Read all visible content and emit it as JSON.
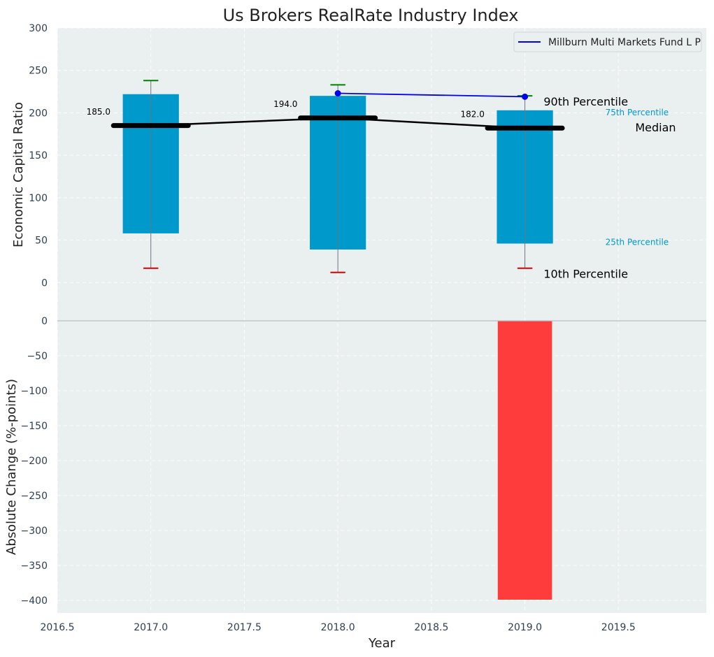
{
  "chart_data": {
    "type": "bar",
    "title": "Us Brokers RealRate Industry Index",
    "xlabel": "Year",
    "x_ticks": [
      2016.5,
      2017.0,
      2017.5,
      2018.0,
      2018.5,
      2019.0,
      2019.5
    ],
    "xlim": [
      2016.5,
      2019.97
    ],
    "top_panel": {
      "ylabel": "Economic Capital Ratio",
      "ylim": [
        -45,
        300
      ],
      "y_ticks": [
        0,
        50,
        100,
        150,
        200,
        250,
        300
      ],
      "years": [
        2017,
        2018,
        2019
      ],
      "p10": [
        17,
        12,
        17
      ],
      "p25": [
        58,
        39,
        46
      ],
      "median": [
        185.0,
        194.0,
        182.0
      ],
      "p75": [
        222,
        220,
        203
      ],
      "p90": [
        238,
        233,
        220
      ],
      "median_labels": [
        "185.0",
        "194.0",
        "182.0"
      ],
      "fund_series": {
        "name": "Millburn Multi Markets Fund L P",
        "x": [
          2018,
          2019
        ],
        "values": [
          223,
          219
        ]
      },
      "annotations": {
        "p90": "90th Percentile",
        "p75": "75th Percentile",
        "median": "Median",
        "p25": "25th Percentile",
        "p10": "10th Percentile"
      },
      "legend_position": "top-right"
    },
    "bottom_panel": {
      "ylabel": "Absolute Change (%-points)",
      "ylim": [
        -418,
        0
      ],
      "y_ticks": [
        0,
        -50,
        -100,
        -150,
        -200,
        -250,
        -300,
        -350,
        -400
      ],
      "years": [
        2019
      ],
      "values": [
        -399
      ]
    },
    "colors": {
      "background": "#eaeff0",
      "box": "#0099cc",
      "median": "#000000",
      "fund": "#0000ee",
      "whisker_high": "#008000",
      "whisker_low": "#dd0000",
      "change_negative": "#ff3c3c",
      "p75_label": "#0099cc"
    },
    "grid": true
  }
}
